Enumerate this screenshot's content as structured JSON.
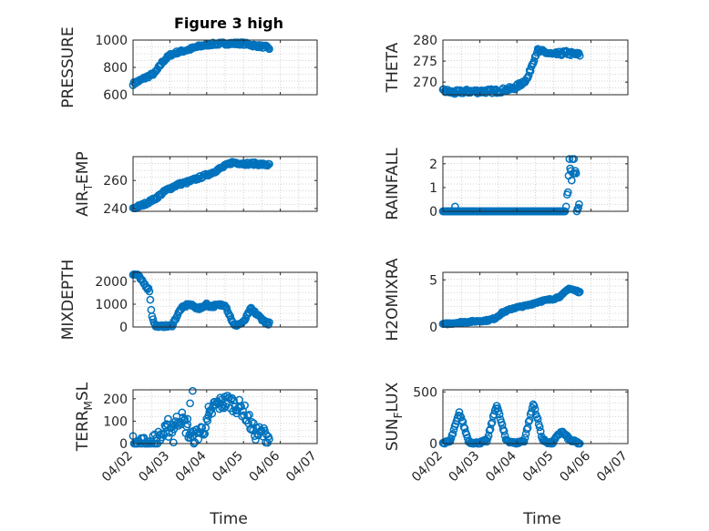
{
  "figure": {
    "title": "Figure 3 high",
    "marker_color": "#0072BD",
    "background": "#ffffff"
  },
  "chart_data": [
    {
      "type": "scatter",
      "title": "Figure 3 high",
      "xlabel": "",
      "ylabel": "PRESSURE",
      "ylabel_sub": null,
      "ylim": [
        600,
        1000
      ],
      "yticks": [
        600,
        800,
        1000
      ],
      "yticklabels": [
        "600",
        "800",
        "1000"
      ],
      "xlim": [
        0,
        5
      ],
      "xticks": [
        0,
        1,
        2,
        3,
        4,
        5
      ],
      "xticklabels": [],
      "grid": true,
      "x_keyframes": [
        0,
        0.3,
        0.6,
        0.8,
        1.0,
        1.2,
        1.5,
        1.8,
        2.1,
        2.5,
        3.0,
        3.3,
        3.6,
        3.7
      ],
      "y_keyframes": [
        680,
        720,
        760,
        840,
        890,
        910,
        930,
        955,
        970,
        975,
        975,
        960,
        950,
        940
      ],
      "noise": 10
    },
    {
      "type": "scatter",
      "title": "",
      "xlabel": "",
      "ylabel": "THETA",
      "ylabel_sub": null,
      "ylim": [
        267,
        280
      ],
      "yticks": [
        270,
        275,
        280
      ],
      "yticklabels": [
        "270",
        "275",
        "280"
      ],
      "xlim": [
        0,
        5
      ],
      "xticks": [
        0,
        1,
        2,
        3,
        4,
        5
      ],
      "xticklabels": [],
      "grid": true,
      "x_keyframes": [
        0,
        0.3,
        0.6,
        1.0,
        1.5,
        1.9,
        2.1,
        2.3,
        2.4,
        2.55,
        2.8,
        3.0,
        3.3,
        3.7
      ],
      "y_keyframes": [
        268,
        267.5,
        267.8,
        267.8,
        267.9,
        268.5,
        269.5,
        271,
        274,
        277.5,
        277,
        276.5,
        277,
        276.5
      ],
      "noise": 0.5
    },
    {
      "type": "scatter",
      "title": "",
      "xlabel": "",
      "ylabel": "AIR",
      "ylabel_sub": "T",
      "ylabel_suffix": "EMP",
      "ylim": [
        238,
        277
      ],
      "yticks": [
        240,
        260
      ],
      "yticklabels": [
        "240",
        "260"
      ],
      "xlim": [
        0,
        5
      ],
      "xticks": [
        0,
        1,
        2,
        3,
        4,
        5
      ],
      "xticklabels": [],
      "grid": true,
      "x_keyframes": [
        0,
        0.3,
        0.6,
        0.9,
        1.2,
        1.5,
        1.8,
        2.1,
        2.4,
        2.7,
        3.0,
        3.3,
        3.7
      ],
      "y_keyframes": [
        240,
        243,
        247,
        253,
        257,
        259,
        262,
        265,
        269,
        273,
        272,
        272,
        271
      ],
      "noise": 1
    },
    {
      "type": "scatter",
      "title": "",
      "xlabel": "",
      "ylabel": "RAINFALL",
      "ylabel_sub": null,
      "ylim": [
        0,
        2.3
      ],
      "yticks": [
        0,
        1,
        2
      ],
      "yticklabels": [
        "0",
        "1",
        "2"
      ],
      "xlim": [
        0,
        5
      ],
      "xticks": [
        0,
        1,
        2,
        3,
        4,
        5
      ],
      "xticklabels": [],
      "grid": true,
      "x_keyframes": [
        0,
        3.3
      ],
      "y_keyframes": [
        0,
        0
      ],
      "noise": 0,
      "extra_points": [
        [
          0.33,
          0.2
        ],
        [
          3.33,
          0.2
        ],
        [
          3.36,
          0.7
        ],
        [
          3.38,
          0.8
        ],
        [
          3.4,
          1.5
        ],
        [
          3.42,
          2.2
        ],
        [
          3.44,
          1.8
        ],
        [
          3.46,
          1.7
        ],
        [
          3.48,
          1.3
        ],
        [
          3.5,
          2.2
        ],
        [
          3.52,
          1.6
        ],
        [
          3.54,
          2.2
        ],
        [
          3.56,
          1.6
        ],
        [
          3.58,
          1.7
        ],
        [
          3.6,
          1.6
        ],
        [
          3.62,
          0.0
        ],
        [
          3.64,
          0.1
        ],
        [
          3.66,
          0.15
        ],
        [
          3.68,
          0.3
        ]
      ]
    },
    {
      "type": "scatter",
      "title": "",
      "xlabel": "",
      "ylabel": "MIXDEPTH",
      "ylabel_sub": null,
      "ylim": [
        0,
        2400
      ],
      "yticks": [
        0,
        1000,
        2000
      ],
      "yticklabels": [
        "0",
        "1000",
        "2000"
      ],
      "xlim": [
        0,
        5
      ],
      "xticks": [
        0,
        1,
        2,
        3,
        4,
        5
      ],
      "xticklabels": [],
      "grid": true,
      "x_keyframes": [
        0,
        0.12,
        0.2,
        0.3,
        0.45,
        0.5,
        0.6,
        0.7,
        0.85,
        1.05,
        1.3,
        1.5,
        1.8,
        2.0,
        2.1,
        2.3,
        2.5,
        2.6,
        2.75,
        3.0,
        3.2,
        3.4,
        3.6,
        3.7
      ],
      "y_keyframes": [
        2300,
        2300,
        2100,
        1900,
        1600,
        600,
        50,
        20,
        20,
        50,
        800,
        1000,
        800,
        1000,
        900,
        950,
        1000,
        600,
        50,
        200,
        800,
        500,
        200,
        150
      ],
      "noise": 60
    },
    {
      "type": "scatter",
      "title": "",
      "xlabel": "",
      "ylabel": "H2OMIXRA",
      "ylabel_sub": null,
      "ylim": [
        0,
        5.8
      ],
      "yticks": [
        0,
        5
      ],
      "yticklabels": [
        "0",
        "5"
      ],
      "xlim": [
        0,
        5
      ],
      "xticks": [
        0,
        1,
        2,
        3,
        4,
        5
      ],
      "xticklabels": [],
      "grid": true,
      "x_keyframes": [
        0,
        0.5,
        1.2,
        1.4,
        1.6,
        1.9,
        2.3,
        2.6,
        3.0,
        3.2,
        3.4,
        3.7
      ],
      "y_keyframes": [
        0.3,
        0.5,
        0.7,
        0.9,
        1.5,
        2.0,
        2.3,
        2.7,
        3.0,
        3.3,
        4.1,
        3.7
      ],
      "noise": 0.08
    },
    {
      "type": "scatter",
      "title": "",
      "xlabel": "",
      "ylabel": "TERR",
      "ylabel_sub": "M",
      "ylabel_suffix": "SL",
      "ylim": [
        0,
        240
      ],
      "yticks": [
        0,
        100,
        200
      ],
      "yticklabels": [
        "0",
        "100",
        "200"
      ],
      "xlim": [
        0,
        5
      ],
      "xticks": [
        0,
        1,
        2,
        3,
        4,
        5
      ],
      "xticklabels": [
        "04/02",
        "04/03",
        "04/04",
        "04/05",
        "04/06",
        "04/07"
      ],
      "grid": true,
      "x_keyframes": [
        0,
        0.5,
        0.8,
        1.1,
        1.3,
        1.6,
        2.0,
        2.2,
        2.6,
        3.0,
        3.3,
        3.6,
        3.7
      ],
      "y_keyframes": [
        0,
        0,
        40,
        80,
        120,
        20,
        80,
        170,
        190,
        150,
        50,
        40,
        30
      ],
      "noise": 35,
      "extra_points": [
        [
          1.62,
          235
        ],
        [
          1.48,
          110
        ],
        [
          1.55,
          180
        ],
        [
          0.95,
          110
        ],
        [
          1.1,
          5
        ],
        [
          2.05,
          165
        ]
      ]
    },
    {
      "type": "scatter",
      "title": "",
      "xlabel": "",
      "ylabel": "SUN",
      "ylabel_sub": "F",
      "ylabel_suffix": "LUX",
      "ylim": [
        0,
        520
      ],
      "yticks": [
        0,
        500
      ],
      "yticklabels": [
        "0",
        "500"
      ],
      "xlim": [
        0,
        5
      ],
      "xticks": [
        0,
        1,
        2,
        3,
        4,
        5
      ],
      "xticklabels": [
        "04/02",
        "04/03",
        "04/04",
        "04/05",
        "04/06",
        "04/07"
      ],
      "grid": true,
      "x_keyframes": [
        0,
        0.2,
        0.45,
        0.7,
        0.95,
        1.2,
        1.45,
        1.7,
        1.95,
        2.2,
        2.45,
        2.7,
        2.95,
        3.2,
        3.45,
        3.7
      ],
      "y_keyframes": [
        0,
        20,
        300,
        20,
        0,
        30,
        380,
        40,
        0,
        30,
        390,
        30,
        0,
        120,
        30,
        0
      ],
      "noise": 15
    }
  ],
  "xlabel_bottom": "Time"
}
